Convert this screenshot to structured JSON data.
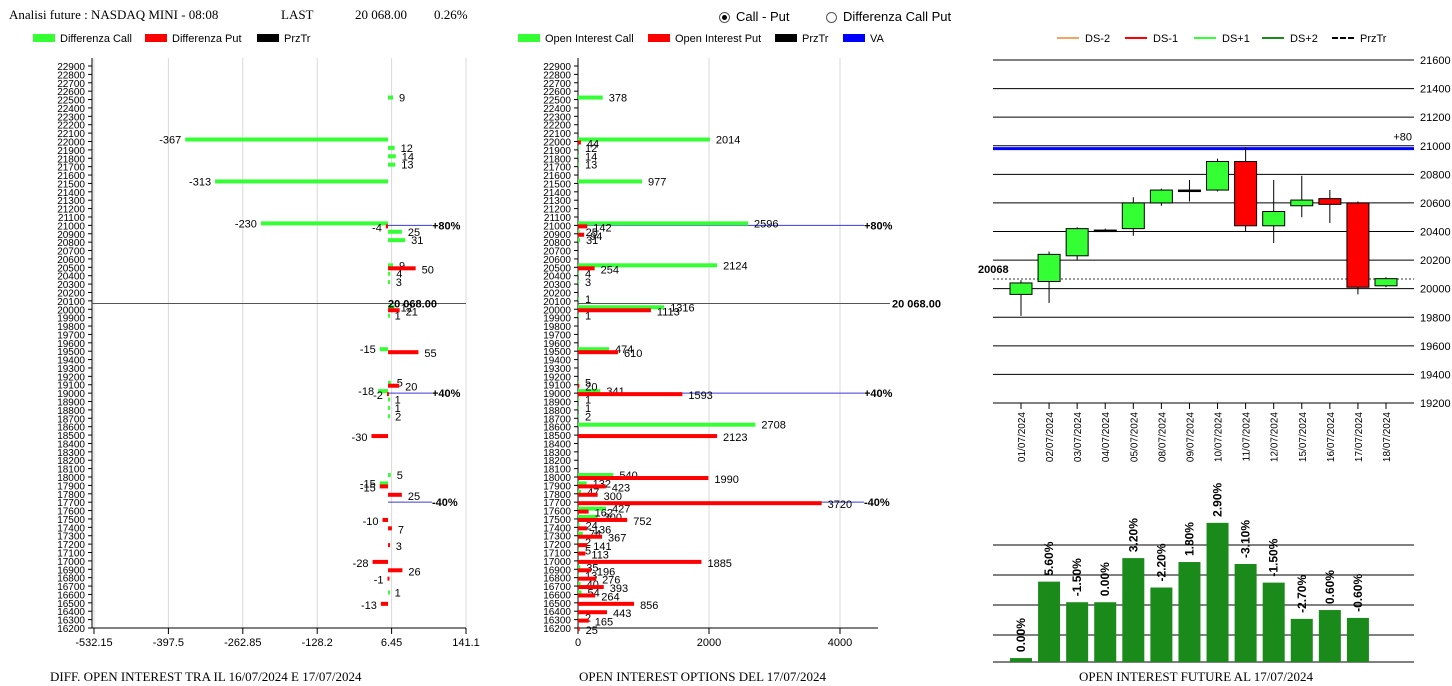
{
  "header": {
    "title": "Analisi future : NASDAQ MINI - 08:08",
    "last_label": "LAST",
    "last_value": "20 068.00",
    "change": "0.26%",
    "radio_options": [
      {
        "label": "Call - Put",
        "selected": true
      },
      {
        "label": "Differenza Call Put",
        "selected": false
      }
    ]
  },
  "colors": {
    "call": "#33ff33",
    "put": "#ff0000",
    "prztr": "#000000",
    "va": "#0000ff",
    "future_bar": "#1a8a1a"
  },
  "chart_data": [
    {
      "type": "bar",
      "orientation": "horizontal",
      "title": "DIFF. OPEN INTEREST TRA IL 16/07/2024 E 17/07/2024",
      "legend": [
        "Differenza Call",
        "Differenza Put",
        "PrzTr"
      ],
      "y_ticks": [
        22900,
        22800,
        22700,
        22600,
        22500,
        22400,
        22300,
        22200,
        22100,
        22000,
        21900,
        21800,
        21700,
        21600,
        21500,
        21400,
        21300,
        21200,
        21100,
        21000,
        20900,
        20800,
        20700,
        20600,
        20500,
        20400,
        20300,
        20200,
        20100,
        20000,
        19900,
        19800,
        19700,
        19600,
        19500,
        19400,
        19300,
        19200,
        19100,
        19000,
        18900,
        18800,
        18700,
        18600,
        18500,
        18400,
        18300,
        18200,
        18100,
        18000,
        17900,
        17800,
        17700,
        17600,
        17500,
        17400,
        17300,
        17200,
        17100,
        17000,
        16900,
        16800,
        16700,
        16600,
        16500,
        16400,
        16300,
        16200
      ],
      "x_ticks": [
        "-532.15",
        "-397.5",
        "-262.85",
        "-128.2",
        "6.45",
        "141.1"
      ],
      "xlim": [
        -532.15,
        141.1
      ],
      "series": [
        {
          "name": "Differenza Call",
          "points": [
            {
              "strike": 22500,
              "value": 9
            },
            {
              "strike": 22000,
              "value": -367
            },
            {
              "strike": 21900,
              "value": 12
            },
            {
              "strike": 21800,
              "value": 14
            },
            {
              "strike": 21700,
              "value": 13
            },
            {
              "strike": 21500,
              "value": -313
            },
            {
              "strike": 21000,
              "value": -230
            },
            {
              "strike": 20900,
              "value": 25
            },
            {
              "strike": 20800,
              "value": 31
            },
            {
              "strike": 20500,
              "value": 9
            },
            {
              "strike": 20400,
              "value": 4
            },
            {
              "strike": 20300,
              "value": 3
            },
            {
              "strike": 20000,
              "value": 12
            },
            {
              "strike": 19900,
              "value": 1
            },
            {
              "strike": 19500,
              "value": -15
            },
            {
              "strike": 19100,
              "value": 5
            },
            {
              "strike": 19000,
              "value": -18
            },
            {
              "strike": 18900,
              "value": 1
            },
            {
              "strike": 18800,
              "value": 1
            },
            {
              "strike": 18700,
              "value": 2
            },
            {
              "strike": 18000,
              "value": 5
            },
            {
              "strike": 17900,
              "value": -15
            },
            {
              "strike": 16600,
              "value": 1
            }
          ]
        },
        {
          "name": "Differenza Put",
          "points": [
            {
              "strike": 21000,
              "value": -4
            },
            {
              "strike": 20500,
              "value": 50
            },
            {
              "strike": 20000,
              "value": 21
            },
            {
              "strike": 19500,
              "value": 55
            },
            {
              "strike": 19100,
              "value": 20
            },
            {
              "strike": 19000,
              "value": -2
            },
            {
              "strike": 18500,
              "value": -30
            },
            {
              "strike": 17900,
              "value": -15
            },
            {
              "strike": 17800,
              "value": 25
            },
            {
              "strike": 17500,
              "value": -10
            },
            {
              "strike": 17400,
              "value": 7
            },
            {
              "strike": 17200,
              "value": 3
            },
            {
              "strike": 17000,
              "value": -28
            },
            {
              "strike": 16900,
              "value": 26
            },
            {
              "strike": 16800,
              "value": -1
            },
            {
              "strike": 16500,
              "value": -13
            }
          ]
        }
      ],
      "price_line": {
        "value": 20068,
        "label": "20 068.00"
      },
      "markers": [
        {
          "strike": 21000,
          "label": "+80%"
        },
        {
          "strike": 19000,
          "label": "+40%"
        },
        {
          "strike": 17700,
          "label": "-40%"
        }
      ]
    },
    {
      "type": "bar",
      "orientation": "horizontal",
      "title": "OPEN INTEREST OPTIONS DEL 17/07/2024",
      "legend": [
        "Open Interest Call",
        "Open Interest Put",
        "PrzTr",
        "VA"
      ],
      "x_ticks": [
        "0",
        "2000",
        "4000"
      ],
      "xlim": [
        0,
        4500
      ],
      "series": [
        {
          "name": "Open Interest Call",
          "points": [
            {
              "strike": 22500,
              "value": 378
            },
            {
              "strike": 22000,
              "value": 2014
            },
            {
              "strike": 21900,
              "value": 12
            },
            {
              "strike": 21800,
              "value": 14
            },
            {
              "strike": 21700,
              "value": 13
            },
            {
              "strike": 21500,
              "value": 977
            },
            {
              "strike": 21000,
              "value": 2596
            },
            {
              "strike": 20900,
              "value": 25
            },
            {
              "strike": 20800,
              "value": 31
            },
            {
              "strike": 20500,
              "value": 2124
            },
            {
              "strike": 20400,
              "value": 4
            },
            {
              "strike": 20300,
              "value": 3
            },
            {
              "strike": 20100,
              "value": 1
            },
            {
              "strike": 20000,
              "value": 1316
            },
            {
              "strike": 19900,
              "value": 1
            },
            {
              "strike": 19500,
              "value": 474
            },
            {
              "strike": 19100,
              "value": 5
            },
            {
              "strike": 19000,
              "value": 341
            },
            {
              "strike": 18900,
              "value": 1
            },
            {
              "strike": 18800,
              "value": 1
            },
            {
              "strike": 18700,
              "value": 2
            },
            {
              "strike": 18600,
              "value": 2708
            },
            {
              "strike": 18000,
              "value": 540
            },
            {
              "strike": 17900,
              "value": 132
            },
            {
              "strike": 17800,
              "value": 47
            },
            {
              "strike": 17600,
              "value": 427
            },
            {
              "strike": 17500,
              "value": 300
            },
            {
              "strike": 17400,
              "value": 24
            },
            {
              "strike": 17300,
              "value": 74
            },
            {
              "strike": 17200,
              "value": 2
            },
            {
              "strike": 17100,
              "value": 5
            },
            {
              "strike": 16900,
              "value": 35
            },
            {
              "strike": 16800,
              "value": 13
            },
            {
              "strike": 16700,
              "value": 40
            },
            {
              "strike": 16600,
              "value": 54
            },
            {
              "strike": 16300,
              "value": 2
            }
          ]
        },
        {
          "name": "Open Interest Put",
          "points": [
            {
              "strike": 22000,
              "value": 44
            },
            {
              "strike": 21000,
              "value": 142
            },
            {
              "strike": 20900,
              "value": 94
            },
            {
              "strike": 20500,
              "value": 254
            },
            {
              "strike": 20000,
              "value": 1113
            },
            {
              "strike": 19500,
              "value": 610
            },
            {
              "strike": 19100,
              "value": 20
            },
            {
              "strike": 19000,
              "value": 1593
            },
            {
              "strike": 18500,
              "value": 2123
            },
            {
              "strike": 18000,
              "value": 1990
            },
            {
              "strike": 17900,
              "value": 423
            },
            {
              "strike": 17800,
              "value": 300
            },
            {
              "strike": 17700,
              "value": 3720
            },
            {
              "strike": 17600,
              "value": 162
            },
            {
              "strike": 17500,
              "value": 752
            },
            {
              "strike": 17400,
              "value": 136
            },
            {
              "strike": 17300,
              "value": 367
            },
            {
              "strike": 17200,
              "value": 141
            },
            {
              "strike": 17100,
              "value": 113
            },
            {
              "strike": 17000,
              "value": 1885
            },
            {
              "strike": 16900,
              "value": 196
            },
            {
              "strike": 16800,
              "value": 276
            },
            {
              "strike": 16700,
              "value": 393
            },
            {
              "strike": 16600,
              "value": 264
            },
            {
              "strike": 16500,
              "value": 856
            },
            {
              "strike": 16400,
              "value": 443
            },
            {
              "strike": 16300,
              "value": 165
            },
            {
              "strike": 16200,
              "value": 25
            }
          ]
        }
      ],
      "price_line": {
        "value": 20068,
        "label": "20 068.00"
      },
      "markers": [
        {
          "strike": 21000,
          "label": "+80%"
        },
        {
          "strike": 19000,
          "label": "+40%"
        },
        {
          "strike": 17700,
          "label": "-40%"
        }
      ]
    },
    {
      "type": "candlestick",
      "legend": [
        "DS-2",
        "DS-1",
        "DS+1",
        "DS+2",
        "PrzTr"
      ],
      "legend_colors": [
        "#f4a460",
        "#ff0000",
        "#33ff33",
        "#1a8a1a",
        "#000000"
      ],
      "y_ticks": [
        21600,
        21400,
        21200,
        21000,
        20800,
        20600,
        20400,
        20200,
        20000,
        19800,
        19600,
        19400,
        19200
      ],
      "ylim": [
        19200,
        21650
      ],
      "x": [
        "01/07/2024",
        "02/07/2024",
        "03/07/2024",
        "04/07/2024",
        "05/07/2024",
        "08/07/2024",
        "09/07/2024",
        "10/07/2024",
        "11/07/2024",
        "12/07/2024",
        "15/07/2024",
        "16/07/2024",
        "17/07/2024",
        "18/07/2024"
      ],
      "candles": [
        {
          "open": 19960,
          "close": 20040,
          "high": 20060,
          "low": 19810
        },
        {
          "open": 20050,
          "close": 20240,
          "high": 20260,
          "low": 19900
        },
        {
          "open": 20230,
          "close": 20420,
          "high": 20430,
          "low": 20200
        },
        {
          "open": 20410,
          "close": 20410,
          "high": 20420,
          "low": 20405
        },
        {
          "open": 20420,
          "close": 20600,
          "high": 20640,
          "low": 20370
        },
        {
          "open": 20600,
          "close": 20690,
          "high": 20700,
          "low": 20580
        },
        {
          "open": 20690,
          "close": 20690,
          "high": 20760,
          "low": 20610
        },
        {
          "open": 20690,
          "close": 20890,
          "high": 20910,
          "low": 20680
        },
        {
          "open": 20890,
          "close": 20440,
          "high": 20990,
          "low": 20400
        },
        {
          "open": 20440,
          "close": 20540,
          "high": 20760,
          "low": 20320
        },
        {
          "open": 20580,
          "close": 20620,
          "high": 20790,
          "low": 20500
        },
        {
          "open": 20630,
          "close": 20590,
          "high": 20690,
          "low": 20460
        },
        {
          "open": 20600,
          "close": 20010,
          "high": 20610,
          "low": 19960
        },
        {
          "open": 20020,
          "close": 20070,
          "high": 20080,
          "low": 20010
        }
      ],
      "va_line": {
        "value": 20980,
        "label": "+80"
      },
      "price_line": {
        "value": 20068,
        "label": "20068"
      }
    },
    {
      "type": "bar",
      "title": "OPEN INTEREST FUTURE AL 17/07/2024",
      "categories": [
        "01/07/2024",
        "02/07/2024",
        "03/07/2024",
        "04/07/2024",
        "05/07/2024",
        "08/07/2024",
        "09/07/2024",
        "10/07/2024",
        "11/07/2024",
        "12/07/2024",
        "15/07/2024",
        "16/07/2024",
        "17/07/2024",
        "18/07/2024"
      ],
      "values": [
        4,
        82,
        61,
        61,
        106,
        76,
        102,
        142,
        100,
        81,
        44,
        53,
        45,
        null
      ],
      "labels": [
        "0.00%",
        "5.60%",
        "-1.50%",
        "0.00%",
        "3.20%",
        "-2.20%",
        "1.80%",
        "2.90%",
        "-3.10%",
        "-1.50%",
        "-2.70%",
        "0.60%",
        "-0.60%",
        ""
      ]
    }
  ]
}
